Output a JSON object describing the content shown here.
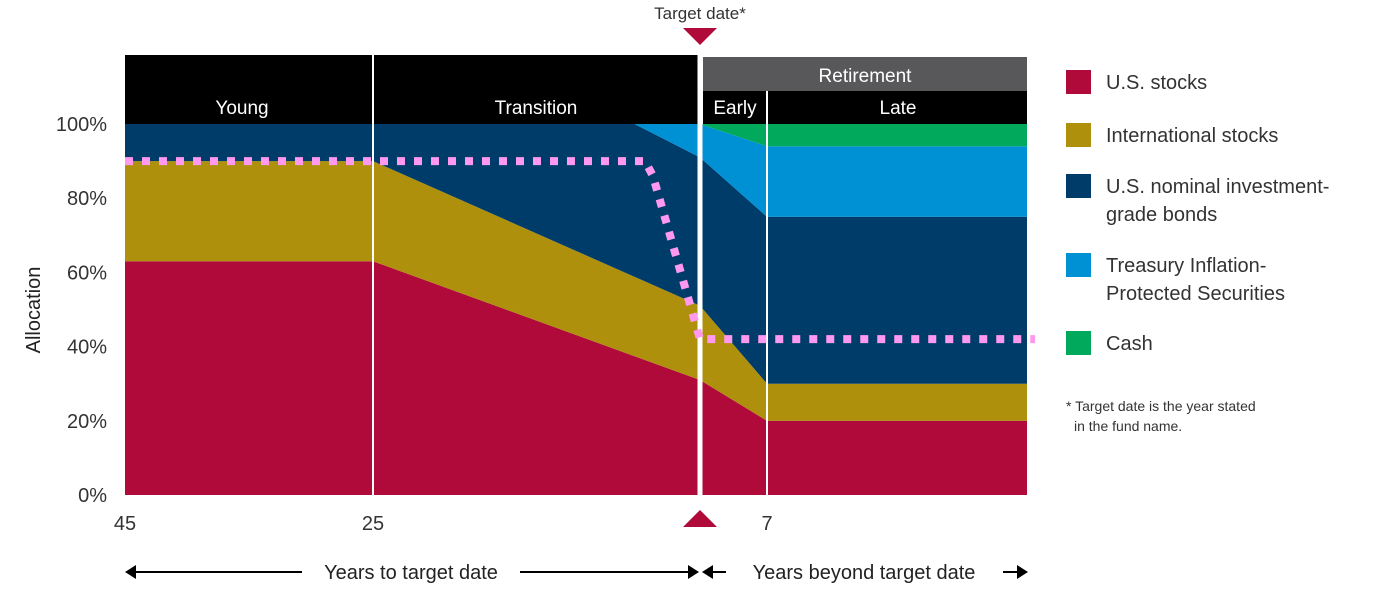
{
  "chart_data": {
    "type": "area",
    "stacked": true,
    "ylabel": "Allocation",
    "ylim": [
      0,
      100
    ],
    "y_ticks": [
      "0%",
      "20%",
      "40%",
      "60%",
      "80%",
      "100%"
    ],
    "x_ticks": [
      "45",
      "25",
      "7"
    ],
    "x": [
      45,
      25,
      5,
      0,
      -7
    ],
    "x_note": "years to target date (negative = years beyond target date); last value continues flat to chart edge",
    "series": [
      {
        "name": "U.S. stocks",
        "color": "#b00a3a",
        "values": [
          63,
          63,
          37.4,
          31,
          20
        ]
      },
      {
        "name": "International stocks",
        "color": "#ae900c",
        "values": [
          27,
          27,
          21.4,
          20,
          10
        ]
      },
      {
        "name": "U.S. nominal investment-grade bonds",
        "color": "#003c69",
        "values": [
          10,
          10,
          41.2,
          40,
          45
        ]
      },
      {
        "name": "Treasury Inflation-Protected Securities",
        "color": "#0091d4",
        "values": [
          0,
          0,
          0,
          9,
          19
        ]
      },
      {
        "name": "Cash",
        "color": "#00a95c",
        "values": [
          0,
          0,
          0,
          0,
          6
        ]
      }
    ],
    "overlay_line": {
      "color": "#ff99f0",
      "style": "dotted",
      "points": [
        [
          45,
          90
        ],
        [
          4.2,
          90
        ],
        [
          3.6,
          86
        ],
        [
          0,
          42
        ],
        [
          -7,
          42
        ]
      ]
    },
    "phases": {
      "young": "Young",
      "transition": "Transition",
      "retirement": "Retirement",
      "early": "Early",
      "late": "Late"
    },
    "target_label": "Target date*",
    "marker_color": "#b00a3a",
    "x_axis_left": "Years to target date",
    "x_axis_right": "Years beyond target date",
    "footnote": [
      "* Target date is the year stated",
      "in the fund name."
    ],
    "legend": [
      {
        "lines": [
          "U.S. stocks"
        ],
        "color": "#b00a3a"
      },
      {
        "lines": [
          "International stocks"
        ],
        "color": "#ae900c"
      },
      {
        "lines": [
          "U.S. nominal investment-",
          "grade bonds"
        ],
        "color": "#003c69"
      },
      {
        "lines": [
          "Treasury Inflation-",
          "Protected Securities"
        ],
        "color": "#0091d4"
      },
      {
        "lines": [
          "Cash"
        ],
        "color": "#00a95c"
      }
    ],
    "grid": false,
    "legend_position": "right"
  }
}
